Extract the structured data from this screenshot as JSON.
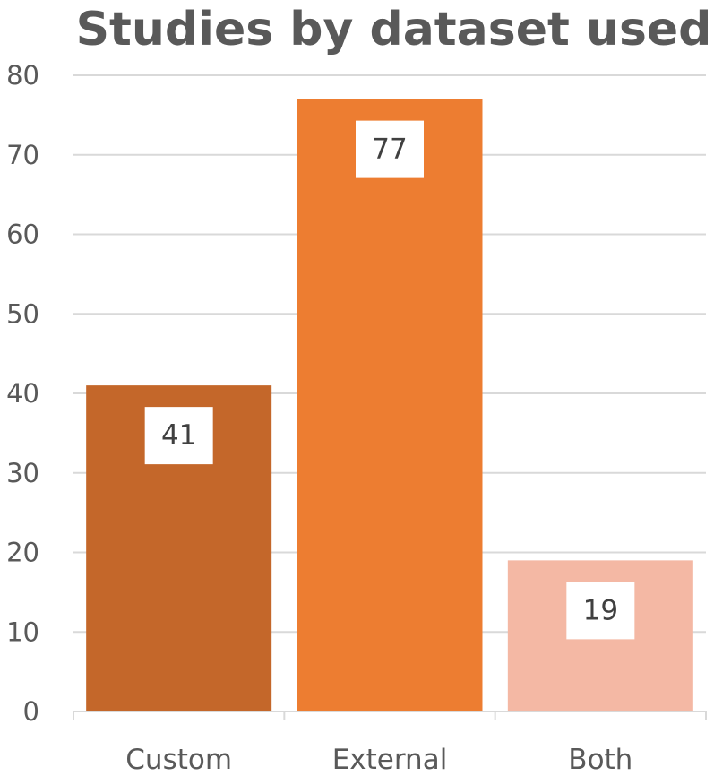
{
  "chart_data": {
    "type": "bar",
    "title": "Studies by dataset used",
    "categories": [
      "Custom",
      "External",
      "Both"
    ],
    "values": [
      41,
      77,
      19
    ],
    "xlabel": "",
    "ylabel": "",
    "ylim": [
      0,
      80
    ],
    "yticks": [
      0,
      10,
      20,
      30,
      40,
      50,
      60,
      70,
      80
    ],
    "grid": true,
    "legend": "none",
    "bar_colors": [
      "#C4672A",
      "#ED7D31",
      "#F4B8A4"
    ],
    "colors": {
      "grid": "#D9D9D9",
      "axis": "#D9D9D9",
      "text": "#595959",
      "data_label_bg": "#FFFFFF",
      "data_label_text": "#404040"
    }
  }
}
